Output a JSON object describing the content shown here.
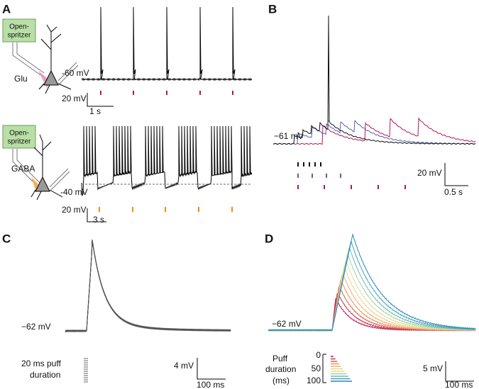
{
  "panel_a": {
    "label": "A",
    "top": {
      "device": [
        "Open-",
        "spritzer"
      ],
      "drug": "Glu",
      "potential": "-60 mV",
      "scale_v": "20 mV",
      "scale_t": "1 s"
    },
    "bottom": {
      "device": [
        "Open-",
        "spritzer"
      ],
      "drug": "GABA",
      "potential": "-40 mV",
      "scale_v": "20 mV",
      "scale_t": "3 s"
    }
  },
  "panel_b": {
    "label": "B",
    "potential": "−61 mV",
    "scale_v": "20 mV",
    "scale_t": "0.5 s"
  },
  "panel_c": {
    "label": "C",
    "potential": "−62 mV",
    "note": [
      "20 ms puff",
      "duration"
    ],
    "scale_v": "4 mV",
    "scale_t": "100 ms"
  },
  "panel_d": {
    "label": "D",
    "potential": "−62 mV",
    "legend_title": [
      "Puff",
      "duration",
      "(ms)"
    ],
    "legend_ticks": [
      0,
      50,
      100
    ],
    "scale_v": "5 mV",
    "scale_t": "100 ms"
  }
}
